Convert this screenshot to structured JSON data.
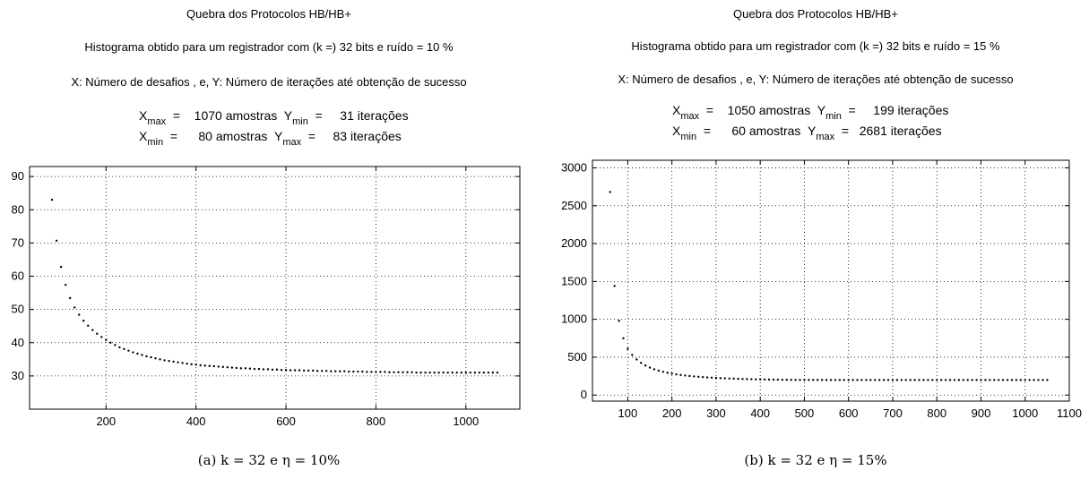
{
  "chart_data": [
    {
      "type": "scatter",
      "title": "Quebra dos Protocolos HB/HB+",
      "subtitle": "Histograma obtido para um registrador com (k =) 32 bits e ruído = 10 %",
      "axes_note": "X: Número de desafios , e, Y: Número de iterações até obtenção de sucesso",
      "stats": {
        "row1": {
          "xlabel": "X",
          "xsub": "max",
          "xeq": "=",
          "xval": "1070 amostras",
          "ylabel": "Y",
          "ysub": "min",
          "yeq": "=",
          "yval": "31 iterações"
        },
        "row2": {
          "xlabel": "X",
          "xsub": "min",
          "xeq": "=",
          "xval": "80 amostras",
          "ylabel": "Y",
          "ysub": "max",
          "yeq": "=",
          "yval": "83 iterações"
        }
      },
      "xlim": [
        30,
        1120
      ],
      "ylim": [
        20,
        93
      ],
      "xticks": [
        200,
        400,
        600,
        800,
        1000
      ],
      "yticks": [
        30,
        40,
        50,
        60,
        70,
        80,
        90
      ],
      "grid": true,
      "x": [
        80,
        90,
        100,
        110,
        120,
        130,
        140,
        150,
        160,
        170,
        180,
        190,
        200,
        210,
        220,
        230,
        240,
        250,
        260,
        270,
        280,
        290,
        300,
        310,
        320,
        330,
        340,
        350,
        360,
        370,
        380,
        390,
        400,
        410,
        420,
        430,
        440,
        450,
        460,
        470,
        480,
        490,
        500,
        510,
        520,
        530,
        540,
        550,
        560,
        570,
        580,
        590,
        600,
        610,
        620,
        630,
        640,
        650,
        660,
        670,
        680,
        690,
        700,
        710,
        720,
        730,
        740,
        750,
        760,
        770,
        780,
        790,
        800,
        810,
        820,
        830,
        840,
        850,
        860,
        870,
        880,
        890,
        900,
        910,
        920,
        930,
        940,
        950,
        960,
        970,
        980,
        990,
        1000,
        1010,
        1020,
        1030,
        1040,
        1050,
        1060,
        1070
      ],
      "y": [
        83,
        70.7,
        62.8,
        57.4,
        53.4,
        50.6,
        48.4,
        46.6,
        45.1,
        43.8,
        42.7,
        41.7,
        40.8,
        40,
        39.3,
        38.6,
        38.1,
        37.6,
        37.1,
        36.7,
        36.3,
        35.9,
        35.6,
        35.3,
        35,
        34.7,
        34.5,
        34.3,
        34.1,
        33.9,
        33.7,
        33.5,
        33.4,
        33.2,
        33.1,
        33,
        32.9,
        32.8,
        32.7,
        32.6,
        32.5,
        32.4,
        32.3,
        32.3,
        32.2,
        32.1,
        32.1,
        32,
        32,
        31.9,
        31.9,
        31.8,
        31.8,
        31.7,
        31.7,
        31.7,
        31.6,
        31.6,
        31.6,
        31.5,
        31.5,
        31.5,
        31.4,
        31.4,
        31.4,
        31.4,
        31.3,
        31.3,
        31.3,
        31.3,
        31.2,
        31.2,
        31.2,
        31.2,
        31.2,
        31.1,
        31.1,
        31.1,
        31.1,
        31.1,
        31.1,
        31,
        31,
        31,
        31,
        31,
        31,
        31,
        31,
        31,
        31,
        31,
        31,
        31,
        31,
        31,
        31,
        31,
        31,
        31
      ],
      "caption": "(a)  k = 32 e η = 10%"
    },
    {
      "type": "scatter",
      "title": "Quebra dos Protocolos HB/HB+",
      "subtitle": "Histograma obtido para um registrador com (k =) 32 bits e ruído = 15 %",
      "axes_note": "X: Número de desafios , e, Y: Número de iterações até obtenção de sucesso",
      "stats": {
        "row1": {
          "xlabel": "X",
          "xsub": "max",
          "xeq": "=",
          "xval": "1050 amostras",
          "ylabel": "Y",
          "ysub": "min",
          "yeq": "=",
          "yval": "199 iterações"
        },
        "row2": {
          "xlabel": "X",
          "xsub": "min",
          "xeq": "=",
          "xval": "60 amostras",
          "ylabel": "Y",
          "ysub": "max",
          "yeq": "=",
          "yval": "2681 iterações"
        }
      },
      "xlim": [
        20,
        1100
      ],
      "ylim": [
        -80,
        3100
      ],
      "xticks": [
        100,
        200,
        300,
        400,
        500,
        600,
        700,
        800,
        900,
        1000,
        1100
      ],
      "yticks": [
        0,
        500,
        1000,
        1500,
        2000,
        2500,
        3000
      ],
      "grid": true,
      "x": [
        60,
        70,
        80,
        90,
        100,
        110,
        120,
        130,
        140,
        150,
        160,
        170,
        180,
        190,
        200,
        210,
        220,
        230,
        240,
        250,
        260,
        270,
        280,
        290,
        300,
        310,
        320,
        330,
        340,
        350,
        360,
        370,
        380,
        390,
        400,
        410,
        420,
        430,
        440,
        450,
        460,
        470,
        480,
        490,
        500,
        510,
        520,
        530,
        540,
        550,
        560,
        570,
        580,
        590,
        600,
        610,
        620,
        630,
        640,
        650,
        660,
        670,
        680,
        690,
        700,
        710,
        720,
        730,
        740,
        750,
        760,
        770,
        780,
        790,
        800,
        810,
        820,
        830,
        840,
        850,
        860,
        870,
        880,
        890,
        900,
        910,
        920,
        930,
        940,
        950,
        960,
        970,
        980,
        990,
        1000,
        1010,
        1020,
        1030,
        1040,
        1050
      ],
      "y": [
        2681,
        1440,
        980,
        750,
        610,
        530,
        470,
        425,
        390,
        362,
        340,
        322,
        307,
        294,
        283,
        273,
        265,
        258,
        251,
        246,
        241,
        237,
        233,
        229,
        226,
        223,
        221,
        218,
        216,
        214,
        212,
        211,
        209,
        208,
        207,
        206,
        205,
        204,
        203,
        202,
        201.5,
        201,
        200.5,
        200,
        200,
        199.8,
        199.6,
        199.4,
        199.3,
        199.2,
        199.1,
        199,
        199,
        199,
        199,
        199,
        199,
        199,
        199,
        199,
        199,
        199,
        199,
        199,
        199,
        199,
        199,
        199,
        199,
        199,
        199,
        199,
        199,
        199,
        199,
        199,
        199,
        199,
        199,
        199,
        199,
        199,
        199,
        199,
        199,
        199,
        199,
        199,
        199,
        199,
        199,
        199,
        199,
        199,
        199,
        199,
        199,
        199,
        199,
        199
      ],
      "caption": "(b)  k = 32 e η = 15%"
    }
  ]
}
